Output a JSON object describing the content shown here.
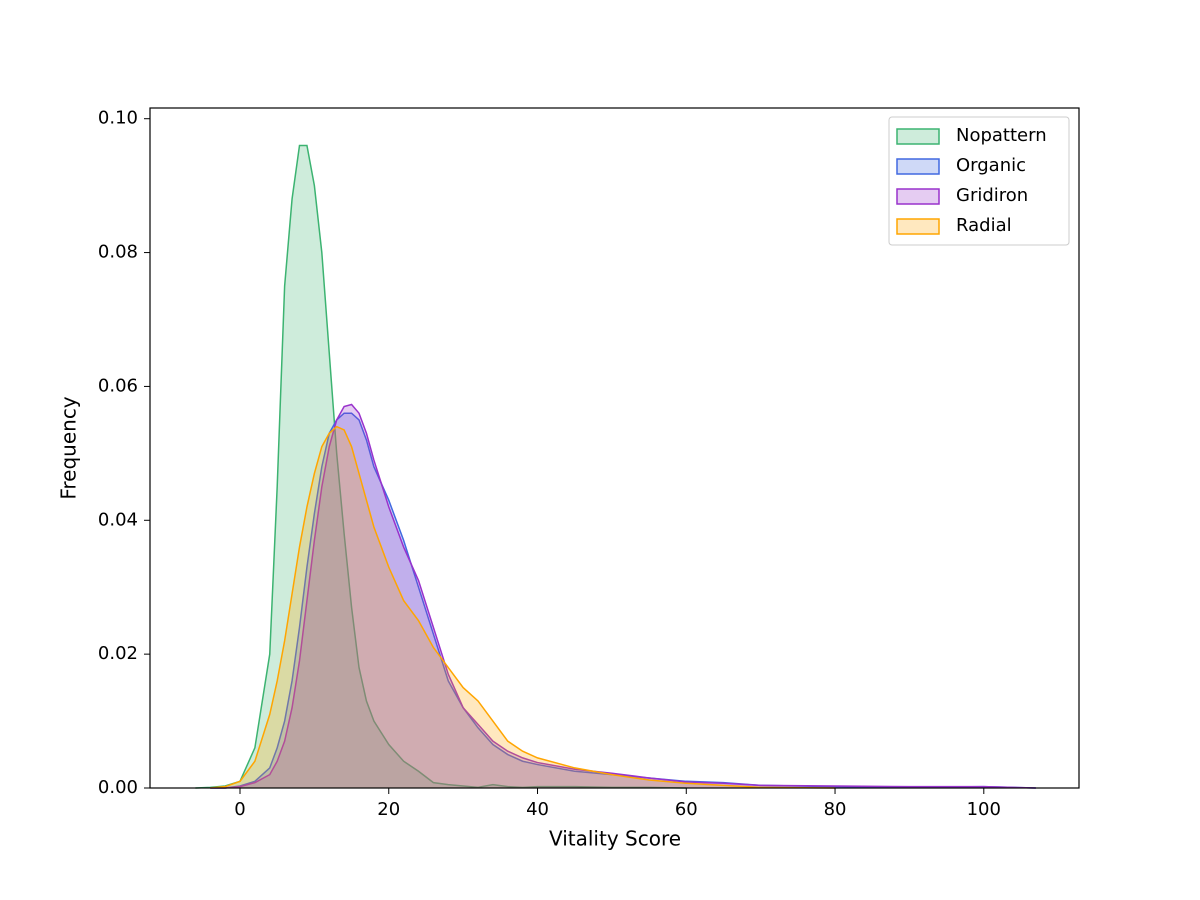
{
  "chart_data": {
    "type": "kde",
    "x_label": "Vitality Score",
    "y_label": "Frequency",
    "x": [
      -6,
      -4,
      -2,
      0,
      2,
      4,
      5,
      6,
      7,
      8,
      9,
      10,
      11,
      12,
      13,
      14,
      15,
      16,
      17,
      18,
      20,
      22,
      24,
      26,
      28,
      30,
      32,
      34,
      36,
      38,
      40,
      45,
      50,
      55,
      60,
      65,
      70,
      80,
      90,
      100,
      107
    ],
    "series": [
      {
        "name": "Nopattern",
        "color": "#3cb371",
        "values": [
          0,
          0.0001,
          0.0003,
          0.001,
          0.006,
          0.02,
          0.045,
          0.075,
          0.088,
          0.096,
          0.096,
          0.09,
          0.08,
          0.065,
          0.05,
          0.038,
          0.027,
          0.018,
          0.013,
          0.01,
          0.0065,
          0.004,
          0.0025,
          0.0008,
          0.0005,
          0.0003,
          0.0001,
          0.0005,
          0.0002,
          0.0001,
          0.0002,
          0.0002,
          0.0001,
          0.0001,
          0,
          null,
          null,
          null,
          null,
          null,
          null
        ]
      },
      {
        "name": "Organic",
        "color": "#4169e1",
        "values": [
          null,
          0,
          0,
          0.0003,
          0.001,
          0.003,
          0.006,
          0.01,
          0.016,
          0.024,
          0.033,
          0.041,
          0.048,
          0.053,
          0.055,
          0.056,
          0.056,
          0.055,
          0.052,
          0.048,
          0.043,
          0.037,
          0.03,
          0.023,
          0.016,
          0.012,
          0.009,
          0.0065,
          0.005,
          0.004,
          0.0035,
          0.0025,
          0.002,
          0.0015,
          0.001,
          0.0008,
          0.0004,
          0.0002,
          0.0001,
          0.0002,
          0
        ]
      },
      {
        "name": "Gridiron",
        "color": "#9932cc",
        "values": [
          null,
          0,
          0,
          0.0002,
          0.0008,
          0.002,
          0.004,
          0.007,
          0.012,
          0.019,
          0.028,
          0.037,
          0.045,
          0.051,
          0.055,
          0.057,
          0.0573,
          0.056,
          0.053,
          0.049,
          0.042,
          0.036,
          0.031,
          0.024,
          0.017,
          0.012,
          0.0095,
          0.007,
          0.0055,
          0.0045,
          0.0038,
          0.0028,
          0.0022,
          0.0015,
          0.0009,
          0.0007,
          0.0004,
          0.0003,
          0.0002,
          0.0002,
          0
        ]
      },
      {
        "name": "Radial",
        "color": "#ffa500",
        "values": [
          null,
          0,
          0.0002,
          0.001,
          0.004,
          0.011,
          0.016,
          0.022,
          0.029,
          0.036,
          0.042,
          0.047,
          0.051,
          0.053,
          0.054,
          0.0535,
          0.051,
          0.047,
          0.043,
          0.039,
          0.033,
          0.028,
          0.025,
          0.021,
          0.018,
          0.015,
          0.013,
          0.01,
          0.007,
          0.0055,
          0.0045,
          0.003,
          0.002,
          0.0012,
          0.0007,
          0.0004,
          0.0001,
          0,
          null,
          null,
          null
        ]
      }
    ],
    "xlim": [
      -12.1,
      112.8
    ],
    "ylim": [
      0,
      0.1016
    ],
    "xticks": [
      0,
      20,
      40,
      60,
      80,
      100
    ],
    "yticks": [
      {
        "value": 0,
        "label": "0.00"
      },
      {
        "value": 0.02,
        "label": "0.02"
      },
      {
        "value": 0.04,
        "label": "0.04"
      },
      {
        "value": 0.06,
        "label": "0.06"
      },
      {
        "value": 0.08,
        "label": "0.08"
      },
      {
        "value": 0.1,
        "label": "0.10"
      }
    ],
    "fill_opacity": 0.25,
    "legend": "upper right",
    "grid": false
  }
}
